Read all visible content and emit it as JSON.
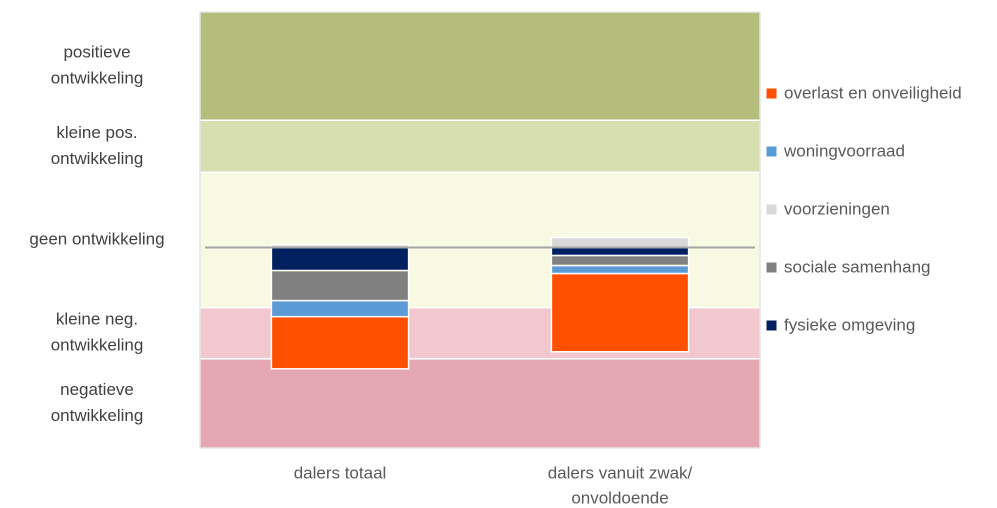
{
  "chart_data": {
    "type": "bar",
    "stacked": true,
    "categories": [
      [
        "dalers totaal"
      ],
      [
        "dalers vanuit zwak/",
        "onvoldoende"
      ]
    ],
    "series": [
      {
        "name": "fysieke omgeving",
        "color": "#002060",
        "values": [
          -2.3,
          -0.8
        ]
      },
      {
        "name": "sociale samenhang",
        "color": "#808080",
        "values": [
          -3.0,
          -1.0
        ]
      },
      {
        "name": "voorzieningen",
        "color": "#d9d9d9",
        "values": [
          0.3,
          1.0
        ]
      },
      {
        "name": "woningvoorraad",
        "color": "#5b9bd5",
        "values": [
          -1.6,
          -0.8
        ]
      },
      {
        "name": "overlast en onveiligheid",
        "color": "#ff5000",
        "values": [
          -5.2,
          -7.8
        ]
      }
    ],
    "bands": [
      {
        "label": [
          "positieve",
          "ontwikkeling"
        ],
        "from": 12.7,
        "to": 23.5,
        "color": "#b5bd7d"
      },
      {
        "label": [
          "kleine pos.",
          "ontwikkeling"
        ],
        "from": 7.5,
        "to": 12.7,
        "color": "#d7dfb0"
      },
      {
        "label": [
          "geen ontwikkeling"
        ],
        "from": -6.0,
        "to": 7.5,
        "color": "#f7f9e3"
      },
      {
        "label": [
          "kleine neg.",
          "ontwikkeling"
        ],
        "from": -11.1,
        "to": -6.0,
        "color": "#f2c7ce"
      },
      {
        "label": [
          "negatieve",
          "ontwikkeling"
        ],
        "from": -20,
        "to": -11.1,
        "color": "#e5a7b2"
      }
    ],
    "baseline": 0,
    "ylim": [
      -20,
      23.5
    ]
  }
}
